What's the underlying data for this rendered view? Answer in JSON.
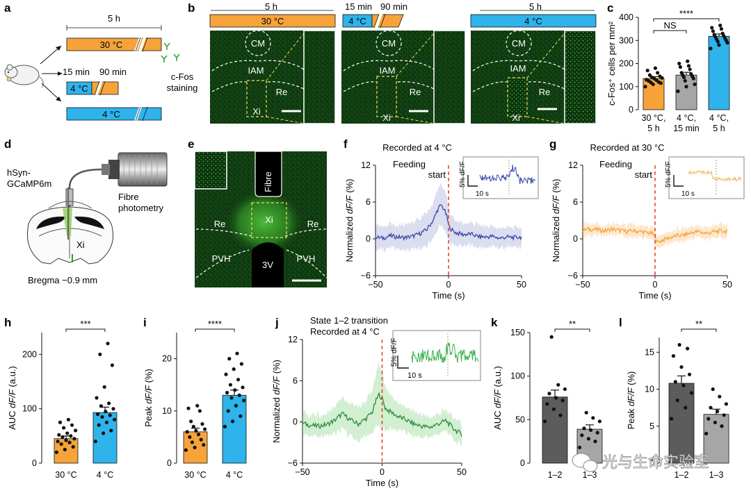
{
  "colors": {
    "orange": "#f6a33a",
    "orange_light": "#f9c48f",
    "blue": "#2eb3ea",
    "blue_light": "#7fd0f2",
    "darkgray": "#5c5c5c",
    "lightgray": "#a6a6a6",
    "navy": "#3646a8",
    "green_trace": "#2c8a3c",
    "green_img": "#3fa33a",
    "red": "#e53b1f"
  },
  "panels": {
    "a": "a",
    "b": "b",
    "c": "c",
    "d": "d",
    "e": "e",
    "f": "f",
    "g": "g",
    "h": "h",
    "i": "i",
    "j": "j",
    "k": "k",
    "l": "l"
  },
  "panel_a": {
    "duration_top": "5 h",
    "bar1": "30 °C",
    "bar2": "4 °C",
    "bar3": "4 °C",
    "t15": "15 min",
    "t90": "90 min",
    "cfos1": "c-Fos",
    "cfos2": "staining"
  },
  "panel_b": {
    "cond": [
      {
        "header": "30 °C",
        "time": "5 h"
      },
      {
        "header": "4 °C",
        "time1": "15 min",
        "time2": "90 min"
      },
      {
        "header": "4 °C",
        "time": "5 h"
      }
    ],
    "regions": {
      "cm": "CM",
      "iam": "IAM",
      "re": "Re",
      "xi": "Xi"
    }
  },
  "panel_d": {
    "hsyn1": "hSyn-",
    "hsyn2": "GCaMP6m",
    "fibre1": "Fibre",
    "fibre2": "photometry",
    "xi": "Xi",
    "bregma": "Bregma −0.9 mm"
  },
  "panel_e": {
    "fibre": "Fibre",
    "xi": "Xi",
    "re": "Re",
    "pvh": "PVH",
    "v3": "3V"
  },
  "panel_f": {
    "title": "Recorded at 4 °C",
    "feed1": "Feeding",
    "feed2": "start",
    "inset_scale_y": "5% dF/F",
    "inset_scale_x": "10 s"
  },
  "panel_g": {
    "title": "Recorded at 30 °C",
    "feed1": "Feeding",
    "feed2": "start",
    "inset_scale_y": "5% dF/F",
    "inset_scale_x": "10 s"
  },
  "panel_j": {
    "title1": "State 1–2 transition",
    "title2": "Recorded at 4 °C",
    "inset_scale_y": "5% dF/F",
    "inset_scale_x": "10 s"
  },
  "watermark": "光与生命实验室",
  "chart_data": [
    {
      "id": "c",
      "type": "bar",
      "categories": [
        [
          "30 °C,",
          "5 h"
        ],
        [
          "4 °C,",
          "15 min"
        ],
        [
          "4 °C,",
          "5 h"
        ]
      ],
      "values": [
        135,
        150,
        318
      ],
      "errors": [
        8,
        12,
        10
      ],
      "ylabel": "c-Fos⁺ cells per mm²",
      "ylim": [
        0,
        400
      ],
      "yticks": [
        0,
        100,
        200,
        300,
        400
      ],
      "annotations": [
        {
          "text": "NS",
          "from": 0,
          "to": 1
        },
        {
          "text": "****",
          "from": 0,
          "to": 2
        }
      ],
      "points": [
        [
          100,
          110,
          115,
          118,
          120,
          125,
          128,
          130,
          135,
          138,
          140,
          145,
          150,
          160,
          170,
          180
        ],
        [
          80,
          100,
          110,
          125,
          135,
          140,
          145,
          150,
          155,
          160,
          175,
          185,
          190,
          200,
          210
        ],
        [
          265,
          280,
          290,
          295,
          300,
          305,
          310,
          315,
          320,
          325,
          330,
          340,
          350,
          355,
          365
        ]
      ]
    },
    {
      "id": "f",
      "type": "line",
      "title": "Recorded at 4 °C",
      "xlabel": "Time (s)",
      "ylabel": "Normalized dF/F (%)",
      "xlim": [
        -50,
        50
      ],
      "ylim": [
        -6,
        12
      ],
      "xticks": [
        -50,
        0,
        50
      ],
      "yticks": [
        -6,
        0,
        6,
        12
      ],
      "annotation": "Feeding start",
      "x": [
        -50,
        -45,
        -40,
        -35,
        -30,
        -25,
        -20,
        -15,
        -10,
        -8,
        -6,
        -5,
        -3,
        -1,
        0,
        2,
        5,
        10,
        15,
        20,
        25,
        30,
        35,
        40,
        45,
        50
      ],
      "y": [
        0.3,
        0.1,
        0.5,
        0.3,
        0.2,
        0.4,
        0.8,
        1.5,
        3.2,
        4.5,
        5.3,
        5.5,
        4.8,
        3.5,
        2.2,
        1.5,
        1.0,
        0.7,
        0.8,
        0.4,
        0.3,
        0.4,
        0.1,
        0.3,
        0.2,
        0.3
      ],
      "err": [
        1.8,
        1.9,
        2,
        2.1,
        2.2,
        2.3,
        2.4,
        2.6,
        3,
        3.2,
        3.3,
        3.4,
        3.2,
        3,
        2.6,
        2.3,
        2,
        1.9,
        1.8,
        1.8,
        1.7,
        1.7,
        1.6,
        1.6,
        1.5,
        1.5
      ]
    },
    {
      "id": "g",
      "type": "line",
      "title": "Recorded at 30 °C",
      "xlabel": "Time (s)",
      "ylabel": "Normalized dF/F (%)",
      "xlim": [
        -50,
        50
      ],
      "ylim": [
        -6,
        12
      ],
      "xticks": [
        -50,
        0,
        50
      ],
      "yticks": [
        -6,
        0,
        6,
        12
      ],
      "annotation": "Feeding start",
      "x": [
        -50,
        -45,
        -40,
        -35,
        -30,
        -25,
        -20,
        -15,
        -10,
        -5,
        -2,
        0,
        2,
        5,
        10,
        15,
        20,
        25,
        30,
        35,
        40,
        45,
        50
      ],
      "y": [
        1.4,
        1.6,
        1.5,
        1.3,
        1.6,
        1.4,
        1.2,
        1.3,
        1.2,
        1.0,
        0.9,
        0.4,
        -0.6,
        -0.2,
        0.2,
        0.5,
        0.6,
        1.0,
        1.2,
        0.9,
        1.1,
        1.3,
        1.2
      ],
      "err": [
        1,
        1,
        1,
        1,
        1,
        1,
        1,
        1,
        1,
        1,
        1,
        1,
        1,
        1,
        1,
        1,
        1,
        1,
        1,
        1,
        1,
        1,
        1
      ]
    },
    {
      "id": "h",
      "type": "bar",
      "categories": [
        "30 °C",
        "4 °C"
      ],
      "values": [
        45,
        93
      ],
      "errors": [
        5,
        10
      ],
      "ylabel": "AUC dF/F (a.u.)",
      "ylim": [
        0,
        240
      ],
      "yticks": [
        0,
        100,
        200
      ],
      "annotations": [
        {
          "text": "***",
          "from": 0,
          "to": 1
        }
      ],
      "points": [
        [
          20,
          25,
          30,
          35,
          38,
          40,
          42,
          45,
          48,
          50,
          52,
          55,
          60,
          65,
          70,
          75,
          80
        ],
        [
          40,
          55,
          60,
          70,
          75,
          80,
          85,
          88,
          90,
          95,
          100,
          105,
          110,
          120,
          140,
          180,
          200,
          220
        ]
      ]
    },
    {
      "id": "i",
      "type": "bar",
      "categories": [
        "30 °C",
        "4 °C"
      ],
      "values": [
        6,
        13
      ],
      "errors": [
        0.7,
        1
      ],
      "ylabel": "Peak dF/F (%)",
      "ylim": [
        0,
        25
      ],
      "yticks": [
        0,
        10,
        20
      ],
      "annotations": [
        {
          "text": "****",
          "from": 0,
          "to": 1
        }
      ],
      "points": [
        [
          2.5,
          3,
          3.5,
          4,
          4.5,
          5,
          5.5,
          6,
          6.2,
          6.5,
          7,
          7.5,
          8,
          10,
          10.5,
          11
        ],
        [
          7,
          8,
          9,
          10,
          11,
          12,
          12.5,
          13,
          13.5,
          14,
          14.5,
          15,
          16,
          17,
          18,
          19,
          20,
          21
        ]
      ]
    },
    {
      "id": "j",
      "type": "line",
      "title": "State 1–2 transition Recorded at 4 °C",
      "xlabel": "Time (s)",
      "ylabel": "Normalized dF/F (%)",
      "xlim": [
        -50,
        50
      ],
      "ylim": [
        -6,
        12
      ],
      "xticks": [
        -50,
        0,
        50
      ],
      "yticks": [
        -6,
        0,
        6,
        12
      ],
      "x": [
        -50,
        -45,
        -40,
        -35,
        -30,
        -25,
        -20,
        -15,
        -10,
        -6,
        -4,
        -2,
        0,
        2,
        5,
        10,
        15,
        20,
        25,
        30,
        35,
        40,
        45,
        50
      ],
      "y": [
        -0.2,
        -0.5,
        -0.6,
        -0.4,
        0.2,
        1.2,
        0.3,
        -0.3,
        0.5,
        1.5,
        3.0,
        4.0,
        3.4,
        2.0,
        1.5,
        0.8,
        0.3,
        -0.3,
        -0.6,
        -0.8,
        -0.3,
        0.2,
        -1.0,
        -1.8
      ],
      "err": [
        1.4,
        1.5,
        1.6,
        1.8,
        2,
        2.4,
        2.3,
        2.4,
        2.6,
        3.2,
        3.8,
        4.5,
        4.0,
        3.2,
        2.5,
        2,
        1.8,
        1.7,
        1.6,
        1.5,
        1.5,
        1.5,
        1.5,
        1.5
      ]
    },
    {
      "id": "k",
      "type": "bar",
      "categories": [
        "1–2",
        "1–3"
      ],
      "values": [
        76,
        39
      ],
      "errors": [
        8,
        5
      ],
      "ylabel": "AUC dF/F (a.u.)",
      "ylim": [
        0,
        150
      ],
      "yticks": [
        0,
        50,
        100,
        150
      ],
      "annotations": [
        {
          "text": "**",
          "from": 0,
          "to": 1
        }
      ],
      "points": [
        [
          48,
          55,
          62,
          68,
          72,
          75,
          80,
          85,
          90,
          145
        ],
        [
          18,
          25,
          28,
          32,
          35,
          38,
          40,
          48,
          52,
          58
        ]
      ]
    },
    {
      "id": "l",
      "type": "bar",
      "categories": [
        "1–2",
        "1–3"
      ],
      "values": [
        10.8,
        6.6
      ],
      "errors": [
        1,
        0.7
      ],
      "ylabel": "Peak dF/F (%)",
      "ylim": [
        0,
        17
      ],
      "yticks": [
        0,
        5,
        10,
        15
      ],
      "annotations": [
        {
          "text": "**",
          "from": 0,
          "to": 1
        }
      ],
      "points": [
        [
          6,
          7.5,
          8.5,
          9.5,
          10.5,
          11,
          12,
          13,
          14.5,
          15.5,
          16
        ],
        [
          4,
          5,
          5.5,
          6,
          6.5,
          7,
          7.5,
          8,
          9,
          10
        ]
      ]
    }
  ]
}
